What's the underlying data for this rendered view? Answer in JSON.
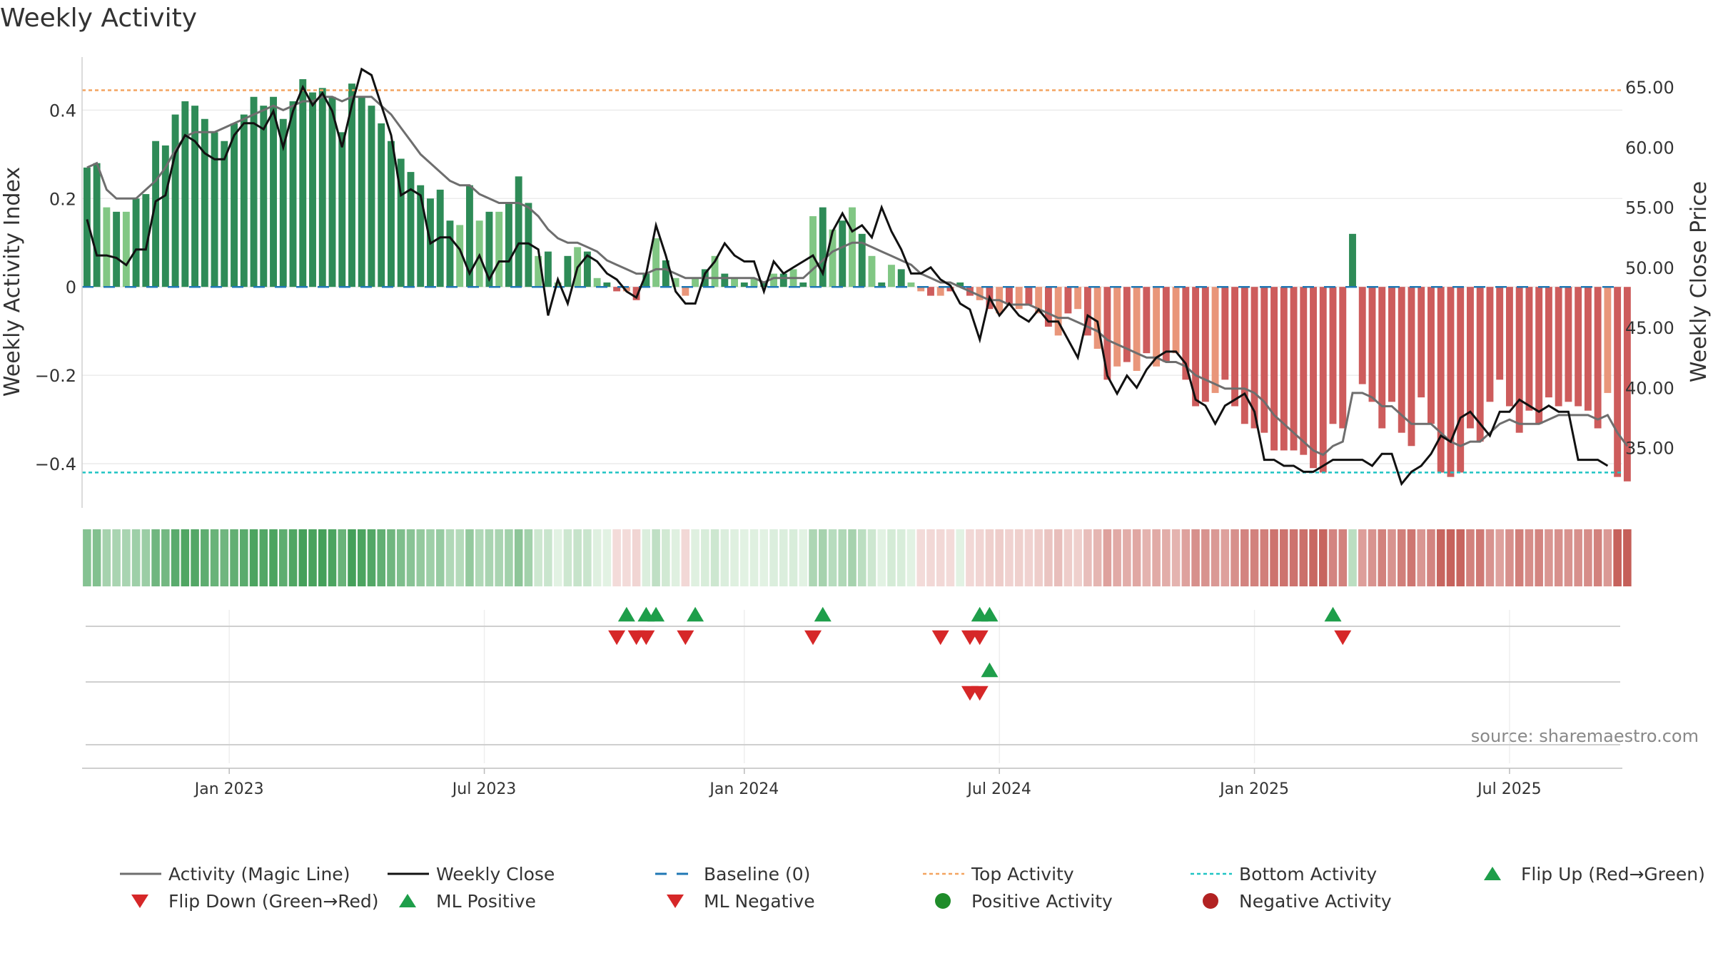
{
  "chart_data": {
    "type": "bar",
    "title": "Weekly Activity",
    "ylabel": "Weekly Activity Index",
    "y2label": "Weekly Close Price",
    "source": "source: sharemaestro.com",
    "ylim": [
      -0.5,
      0.52
    ],
    "y2lim": [
      30.0,
      67.5
    ],
    "yticks": [
      0.4,
      0.2,
      0,
      -0.2,
      -0.4
    ],
    "ytick_labels": [
      "0.4",
      "0.2",
      "0",
      "−0.2",
      "−0.4"
    ],
    "y2ticks": [
      65,
      60,
      55,
      50,
      45,
      40,
      35
    ],
    "y2tick_labels": [
      "65.00",
      "60.00",
      "55.00",
      "50.00",
      "45.00",
      "40.00",
      "35.00"
    ],
    "xtick_labels": [
      "Jan 2023",
      "Jul 2023",
      "Jan 2024",
      "Jul 2024",
      "Jan 2025",
      "Jul 2025"
    ],
    "xtick_weeks": [
      15,
      41,
      67.5,
      93.5,
      119.5,
      145.5
    ],
    "n_weeks": 157,
    "activity": [
      0.27,
      0.28,
      0.18,
      0.17,
      0.17,
      0.2,
      0.21,
      0.33,
      0.32,
      0.39,
      0.42,
      0.41,
      0.38,
      0.35,
      0.33,
      0.37,
      0.39,
      0.43,
      0.41,
      0.43,
      0.38,
      0.42,
      0.47,
      0.44,
      0.45,
      0.43,
      0.35,
      0.46,
      0.43,
      0.41,
      0.37,
      0.33,
      0.29,
      0.26,
      0.23,
      0.2,
      0.22,
      0.15,
      0.14,
      0.23,
      0.15,
      0.17,
      0.17,
      0.19,
      0.25,
      0.19,
      0.07,
      0.08,
      0.01,
      0.07,
      0.09,
      0.08,
      0.02,
      0.01,
      -0.01,
      -0.01,
      -0.03,
      0.03,
      0.11,
      0.06,
      0.02,
      -0.02,
      0.02,
      0.04,
      0.07,
      0.03,
      0.02,
      0.01,
      0.02,
      0.01,
      0.03,
      0.03,
      0.04,
      0.01,
      0.16,
      0.18,
      0.13,
      0.15,
      0.18,
      0.12,
      0.07,
      0.01,
      0.05,
      0.04,
      0.01,
      -0.01,
      -0.02,
      -0.02,
      -0.01,
      0.01,
      -0.02,
      -0.03,
      -0.05,
      -0.06,
      -0.04,
      -0.05,
      -0.04,
      -0.06,
      -0.09,
      -0.11,
      -0.06,
      -0.05,
      -0.11,
      -0.14,
      -0.21,
      -0.18,
      -0.17,
      -0.19,
      -0.15,
      -0.18,
      -0.17,
      -0.15,
      -0.21,
      -0.27,
      -0.26,
      -0.24,
      -0.21,
      -0.27,
      -0.31,
      -0.32,
      -0.33,
      -0.37,
      -0.37,
      -0.37,
      -0.38,
      -0.41,
      -0.42,
      -0.31,
      -0.32,
      0.12,
      -0.22,
      -0.26,
      -0.32,
      -0.26,
      -0.33,
      -0.36,
      -0.25,
      -0.31,
      -0.42,
      -0.43,
      -0.42,
      -0.32,
      -0.35,
      -0.26,
      -0.21,
      -0.27,
      -0.33,
      -0.28,
      -0.31,
      -0.25,
      -0.27,
      -0.26,
      -0.27,
      -0.28,
      -0.32,
      -0.24,
      -0.43,
      -0.44
    ],
    "magic_line": [
      0.27,
      0.28,
      0.22,
      0.2,
      0.2,
      0.2,
      0.22,
      0.24,
      0.27,
      0.31,
      0.34,
      0.35,
      0.35,
      0.35,
      0.36,
      0.37,
      0.38,
      0.39,
      0.4,
      0.41,
      0.4,
      0.41,
      0.42,
      0.42,
      0.43,
      0.43,
      0.42,
      0.43,
      0.43,
      0.43,
      0.41,
      0.39,
      0.36,
      0.33,
      0.3,
      0.28,
      0.26,
      0.24,
      0.23,
      0.23,
      0.21,
      0.2,
      0.19,
      0.19,
      0.19,
      0.18,
      0.16,
      0.13,
      0.11,
      0.1,
      0.1,
      0.09,
      0.08,
      0.06,
      0.05,
      0.04,
      0.03,
      0.03,
      0.04,
      0.04,
      0.03,
      0.02,
      0.02,
      0.02,
      0.02,
      0.02,
      0.02,
      0.02,
      0.02,
      0.01,
      0.02,
      0.02,
      0.02,
      0.02,
      0.04,
      0.06,
      0.08,
      0.09,
      0.1,
      0.1,
      0.09,
      0.08,
      0.07,
      0.06,
      0.05,
      0.03,
      0.02,
      0.01,
      0.01,
      0.0,
      -0.01,
      -0.02,
      -0.03,
      -0.03,
      -0.04,
      -0.04,
      -0.04,
      -0.05,
      -0.06,
      -0.07,
      -0.07,
      -0.08,
      -0.09,
      -0.1,
      -0.12,
      -0.13,
      -0.14,
      -0.15,
      -0.16,
      -0.16,
      -0.17,
      -0.17,
      -0.18,
      -0.2,
      -0.21,
      -0.22,
      -0.23,
      -0.23,
      -0.23,
      -0.24,
      -0.26,
      -0.29,
      -0.31,
      -0.33,
      -0.35,
      -0.37,
      -0.38,
      -0.36,
      -0.35,
      -0.24,
      -0.24,
      -0.25,
      -0.27,
      -0.27,
      -0.29,
      -0.31,
      -0.31,
      -0.31,
      -0.33,
      -0.35,
      -0.36,
      -0.35,
      -0.35,
      -0.33,
      -0.31,
      -0.3,
      -0.31,
      -0.31,
      -0.31,
      -0.3,
      -0.29,
      -0.29,
      -0.29,
      -0.29,
      -0.3,
      -0.29,
      -0.33,
      -0.36
    ],
    "weekly_close": [
      54.0,
      51.0,
      51.0,
      50.8,
      50.2,
      51.5,
      51.5,
      55.5,
      56.0,
      59.5,
      61.0,
      60.5,
      59.5,
      59.0,
      59.0,
      61.0,
      62.0,
      62.0,
      61.5,
      63.0,
      60.0,
      63.0,
      65.0,
      63.5,
      64.5,
      63.0,
      60.0,
      63.5,
      66.5,
      66.0,
      63.5,
      61.0,
      56.0,
      56.5,
      56.0,
      52.0,
      52.5,
      52.5,
      51.5,
      49.5,
      51.0,
      49.0,
      50.5,
      50.5,
      52.0,
      52.0,
      51.5,
      46.0,
      49.0,
      47.0,
      50.0,
      51.0,
      50.5,
      49.5,
      49.0,
      48.0,
      47.5,
      49.5,
      53.5,
      51.0,
      48.0,
      47.0,
      47.0,
      49.5,
      50.5,
      52.0,
      51.0,
      50.5,
      50.5,
      48.0,
      50.5,
      49.5,
      50.0,
      50.5,
      51.0,
      49.5,
      53.0,
      54.5,
      53.0,
      53.5,
      52.5,
      55.0,
      53.0,
      51.5,
      49.5,
      49.5,
      50.0,
      49.0,
      48.5,
      47.0,
      46.5,
      44.0,
      47.5,
      46.0,
      47.0,
      46.0,
      45.5,
      46.5,
      45.5,
      45.5,
      44.0,
      42.5,
      46.0,
      45.5,
      41.0,
      39.5,
      41.0,
      40.0,
      41.5,
      42.5,
      43.0,
      43.0,
      42.0,
      39.0,
      38.5,
      37.0,
      38.5,
      39.0,
      39.5,
      38.0,
      34.0,
      34.0,
      33.5,
      33.5,
      33.0,
      33.0,
      33.5,
      34.0,
      34.0,
      34.0,
      34.0,
      33.5,
      34.5,
      34.5,
      32.0,
      33.0,
      33.5,
      34.5,
      36.0,
      35.5,
      37.5,
      38.0,
      37.0,
      36.0,
      38.0,
      38.0,
      39.0,
      38.5,
      38.0,
      38.5,
      38.0,
      38.0,
      34.0,
      34.0,
      34.0,
      33.5
    ],
    "top_activity": 0.445,
    "bottom_activity": -0.42,
    "baseline": 0,
    "flip_up_weeks": [
      55.5,
      57.5,
      58.5,
      62.5,
      75.5,
      91.5,
      92.5,
      127.5
    ],
    "flip_down_weeks": [
      54.5,
      56.5,
      57.5,
      61.5,
      74.5,
      87.5,
      90.5,
      91.5,
      128.5
    ],
    "ml_positive_weeks": [
      92.5
    ],
    "ml_negative_weeks": [
      90.5,
      91.5
    ],
    "colors": {
      "bar_pos_strong": "#2e8b57",
      "bar_pos_light": "#81c784",
      "bar_neg_strong": "#cd5c5c",
      "bar_neg_light": "#e9967a",
      "magic_line": "#6e6e6e",
      "weekly_close": "#111111",
      "baseline": "#1f77b4",
      "top_activity": "#f4a460",
      "bottom_activity": "#20c4c4",
      "flip_up": "#1e9e4a",
      "flip_down": "#d62728",
      "pos_dot": "#1f8c2a",
      "neg_dot": "#b22222"
    },
    "legend": [
      {
        "label": "Activity (Magic Line)",
        "kind": "line",
        "color": "#6e6e6e"
      },
      {
        "label": "Weekly Close",
        "kind": "line",
        "color": "#111111"
      },
      {
        "label": "Baseline (0)",
        "kind": "dash",
        "color": "#1f77b4"
      },
      {
        "label": "Top Activity",
        "kind": "dot-line",
        "color": "#f4a460"
      },
      {
        "label": "Bottom Activity",
        "kind": "dot-line",
        "color": "#20c4c4"
      },
      {
        "label": "Flip Up (Red→Green)",
        "kind": "tri-up",
        "color": "#1e9e4a"
      },
      {
        "label": "Flip Down (Green→Red)",
        "kind": "tri-down",
        "color": "#d62728"
      },
      {
        "label": "ML Positive",
        "kind": "tri-up",
        "color": "#1e9e4a"
      },
      {
        "label": "ML Negative",
        "kind": "tri-down",
        "color": "#d62728"
      },
      {
        "label": "Positive Activity",
        "kind": "dot",
        "color": "#1f8c2a"
      },
      {
        "label": "Negative Activity",
        "kind": "dot",
        "color": "#b22222"
      }
    ],
    "legend_placement": "bottom",
    "grid": true
  }
}
